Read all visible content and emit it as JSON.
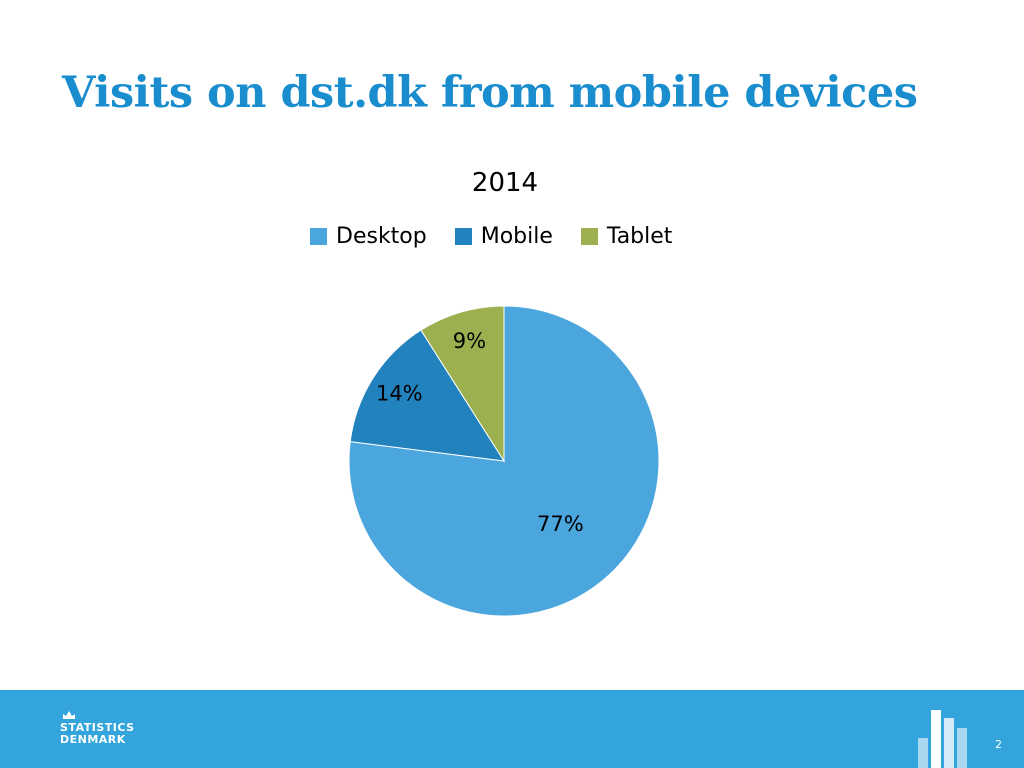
{
  "slide": {
    "title": "Visits on dst.dk from mobile devices",
    "page_number": "2"
  },
  "footer": {
    "logo_line1": "STATISTICS",
    "logo_line2": "DENMARK"
  },
  "colors": {
    "title": "#1a8dce",
    "desktop": "#4aa6dd",
    "mobile": "#2182bd",
    "tablet": "#9cb04f",
    "footer": "#33a5dc"
  },
  "chart_data": {
    "type": "pie",
    "title": "2014",
    "categories": [
      "Desktop",
      "Mobile",
      "Tablet"
    ],
    "values": [
      77,
      14,
      9
    ],
    "labels": [
      "77%",
      "14%",
      "9%"
    ],
    "legend_position": "top",
    "start_angle": "12 o'clock",
    "direction": "clockwise"
  }
}
